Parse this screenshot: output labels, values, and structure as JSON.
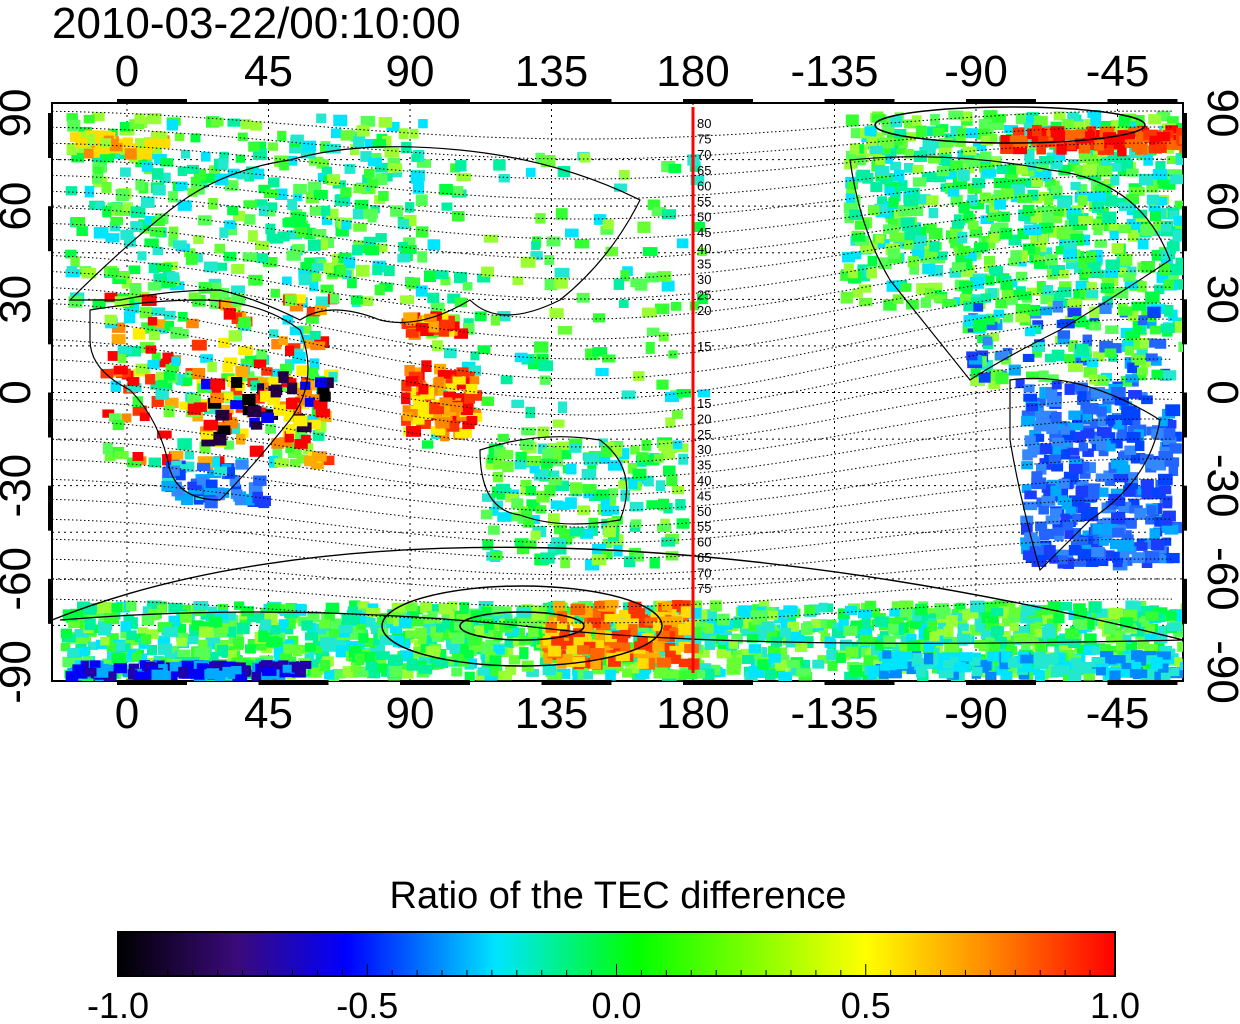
{
  "timestamp": "2010-03-22/00:10:00",
  "map": {
    "lon_ticks": [
      0,
      45,
      90,
      135,
      180,
      -135,
      -90,
      -45
    ],
    "lat_ticks": [
      90,
      60,
      30,
      0,
      -30,
      -60,
      -90
    ],
    "terminator_longitude": 180,
    "contour_labels_north": [
      80,
      75,
      70,
      65,
      60,
      55,
      50,
      45,
      40,
      35,
      30,
      25,
      20,
      15
    ],
    "contour_labels_south": [
      15,
      20,
      25,
      30,
      35,
      40,
      45,
      50,
      55,
      60,
      65,
      70,
      75
    ]
  },
  "colorbar": {
    "title": "Ratio of the TEC difference",
    "range": [
      -1.0,
      1.0
    ],
    "tick_labels": [
      "-1.0",
      "-0.5",
      "0.0",
      "0.5",
      "1.0"
    ],
    "stops": [
      "#000000",
      "#3a0a7a",
      "#0000ff",
      "#00e5ff",
      "#00ff00",
      "#ffff00",
      "#ff8c00",
      "#ff0000"
    ]
  },
  "colors": {
    "terminator": "#ff0000",
    "coastline": "#000000"
  }
}
